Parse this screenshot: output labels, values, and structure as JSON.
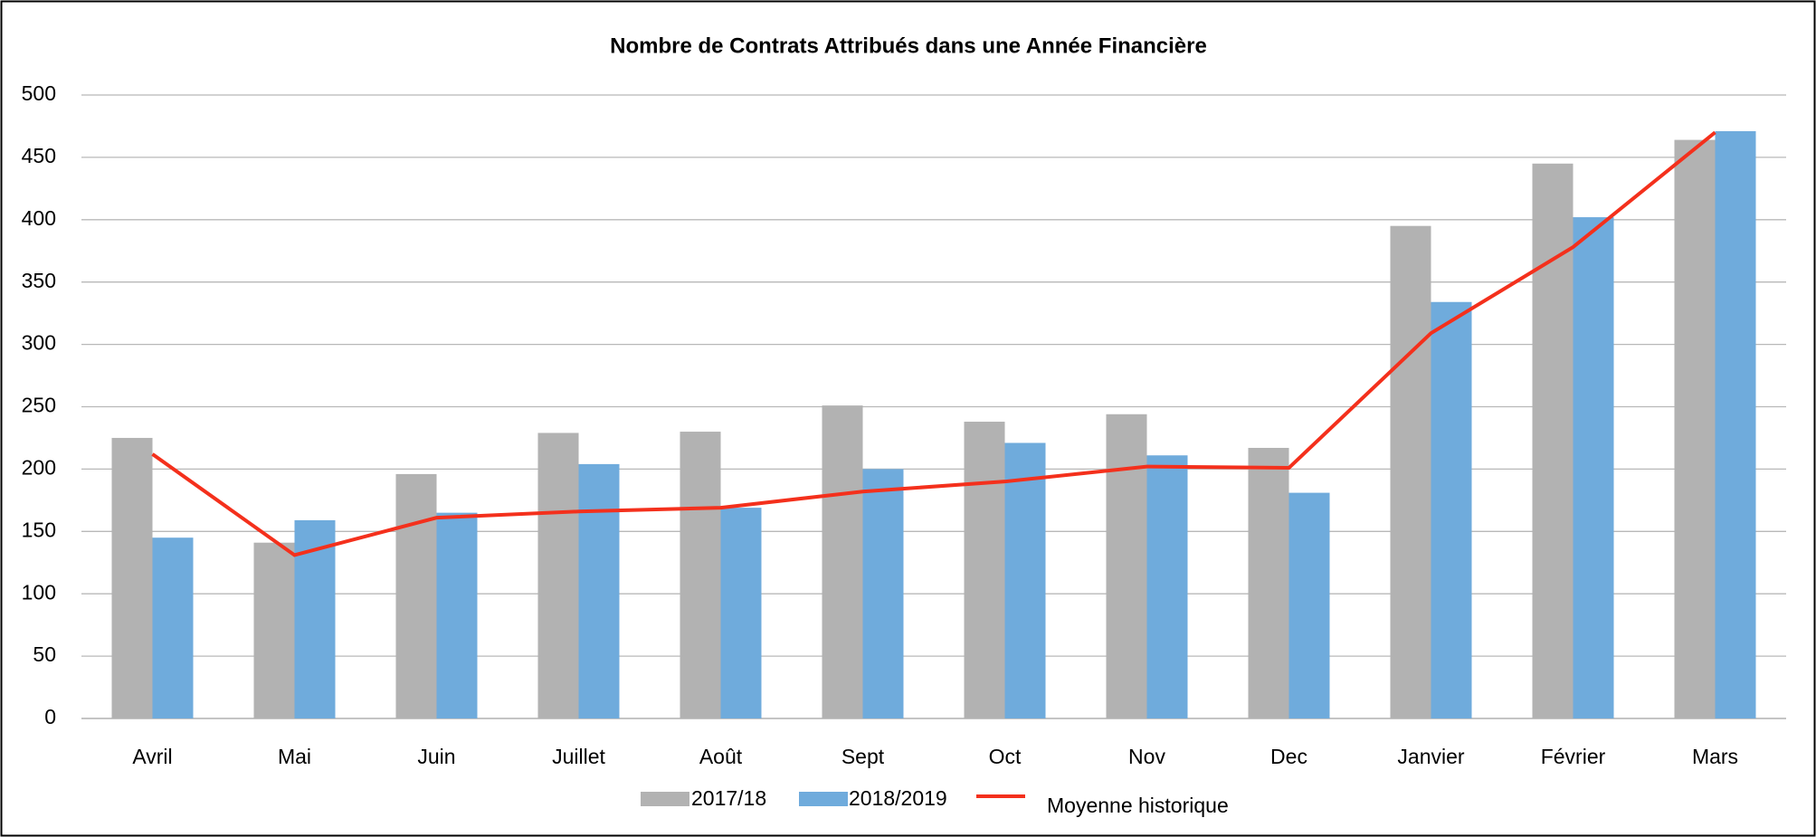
{
  "chart_data": {
    "type": "bar",
    "title": "Nombre de Contrats Attribués dans une Année Financière",
    "categories": [
      "Avril",
      "Mai",
      "Juin",
      "Juillet",
      "Août",
      "Sept",
      "Oct",
      "Nov",
      "Dec",
      "Janvier",
      "Février",
      "Mars"
    ],
    "series": [
      {
        "name": "2017/18",
        "type": "bar",
        "color": "#b2b2b2",
        "values": [
          225,
          141,
          196,
          229,
          230,
          251,
          238,
          244,
          217,
          395,
          445,
          464
        ]
      },
      {
        "name": "2018/2019",
        "type": "bar",
        "color": "#6fabdc",
        "values": [
          145,
          159,
          165,
          204,
          169,
          200,
          221,
          211,
          181,
          334,
          402,
          471
        ]
      },
      {
        "name": "Moyenne historique",
        "type": "line",
        "color": "#f4301c",
        "values": [
          212,
          131,
          161,
          166,
          169,
          182,
          190,
          202,
          201,
          309,
          378,
          470
        ]
      }
    ],
    "ylim": [
      0,
      500
    ],
    "yticks": [
      0,
      50,
      100,
      150,
      200,
      250,
      300,
      350,
      400,
      450,
      500
    ],
    "grid": true,
    "legend": "bottom"
  }
}
